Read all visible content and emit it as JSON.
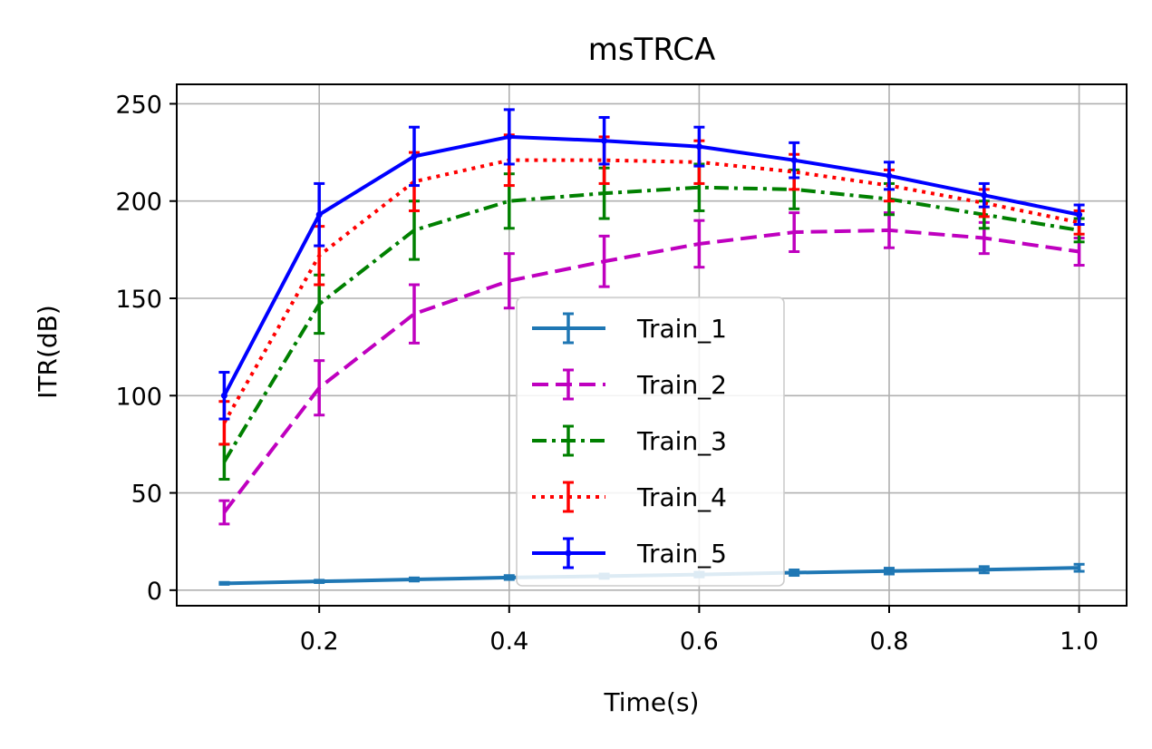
{
  "chart_data": {
    "type": "line",
    "title": "msTRCA",
    "xlabel": "Time(s)",
    "ylabel": "ITR(dB)",
    "xlim": [
      0.05,
      1.05
    ],
    "ylim": [
      -8,
      260
    ],
    "xticks": [
      0.2,
      0.4,
      0.6,
      0.8,
      1.0
    ],
    "xtick_labels": [
      "0.2",
      "0.4",
      "0.6",
      "0.8",
      "1.0"
    ],
    "yticks": [
      0,
      50,
      100,
      150,
      200,
      250
    ],
    "ytick_labels": [
      "0",
      "50",
      "100",
      "150",
      "200",
      "250"
    ],
    "grid": true,
    "legend_position": "center",
    "x": [
      0.1,
      0.2,
      0.3,
      0.4,
      0.5,
      0.6,
      0.7,
      0.8,
      0.9,
      1.0
    ],
    "series": [
      {
        "name": "Train_1",
        "color": "#1f77b4",
        "linestyle": "solid",
        "marker": "none",
        "values": [
          3.5,
          4.5,
          5.5,
          6.5,
          7.2,
          8.0,
          9.0,
          9.8,
          10.5,
          11.5
        ],
        "errors": [
          0.5,
          0.6,
          0.8,
          1.0,
          1.1,
          1.2,
          1.4,
          1.5,
          1.6,
          1.8
        ]
      },
      {
        "name": "Train_2",
        "color": "#bf00bf",
        "linestyle": "dashed",
        "marker": "none",
        "values": [
          40,
          104,
          142,
          159,
          169,
          178,
          184,
          185,
          181,
          174
        ],
        "errors": [
          6,
          14,
          15,
          14,
          13,
          12,
          10,
          9,
          8,
          7
        ]
      },
      {
        "name": "Train_3",
        "color": "#008000",
        "linestyle": "dashdot",
        "marker": "none",
        "values": [
          66,
          147,
          185,
          200,
          204,
          207,
          206,
          201,
          193,
          185
        ],
        "errors": [
          9,
          15,
          15,
          14,
          13,
          12,
          10,
          8,
          7,
          6
        ]
      },
      {
        "name": "Train_4",
        "color": "#ff0000",
        "linestyle": "dotted",
        "marker": "none",
        "values": [
          86,
          172,
          210,
          221,
          221,
          220,
          215,
          208,
          199,
          189
        ],
        "errors": [
          11,
          15,
          15,
          13,
          12,
          11,
          9,
          8,
          7,
          6
        ]
      },
      {
        "name": "Train_5",
        "color": "#0000ff",
        "linestyle": "solid",
        "marker": "dot",
        "values": [
          100,
          193,
          223,
          233,
          231,
          228,
          221,
          213,
          203,
          193
        ],
        "errors": [
          12,
          16,
          15,
          14,
          12,
          10,
          9,
          7,
          6,
          5
        ]
      }
    ]
  }
}
